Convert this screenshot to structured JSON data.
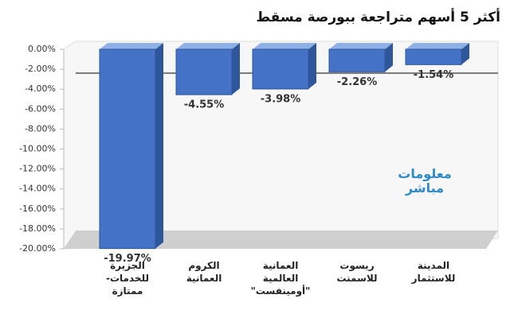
{
  "chart_data": {
    "type": "bar3d",
    "title": "أكثر 5 أسهم متراجعة ببورصة مسقط",
    "watermark": "معلومات مباشر",
    "categories": [
      "الجزيرة للخدمات- ممتازة",
      "الكروم العمانية",
      "العمانية العالمية \"أومينفست\"",
      "ريسوت للاسمنت",
      "المدينة للاستثمار"
    ],
    "values": [
      -19.97,
      -4.55,
      -3.98,
      -2.26,
      -1.54
    ],
    "value_labels": [
      "-19.97%",
      "-4.55%",
      "-3.98%",
      "-2.26%",
      "-1.54%"
    ],
    "color": "#4472c4",
    "ylim": [
      -20,
      0
    ],
    "yticks": [
      {
        "value": 0,
        "label": "0.00%"
      },
      {
        "value": -2,
        "label": "-2.00%"
      },
      {
        "value": -4,
        "label": "-4.00%"
      },
      {
        "value": -6,
        "label": "-6.00%"
      },
      {
        "value": -8,
        "label": "-8.00%"
      },
      {
        "value": -10,
        "label": "-10.00%"
      },
      {
        "value": -12,
        "label": "-12.00%"
      },
      {
        "value": -14,
        "label": "-14.00%"
      },
      {
        "value": -16,
        "label": "-16.00%"
      },
      {
        "value": -18,
        "label": "-18.00%"
      },
      {
        "value": -20,
        "label": "-20.00%"
      }
    ],
    "grid": false
  }
}
